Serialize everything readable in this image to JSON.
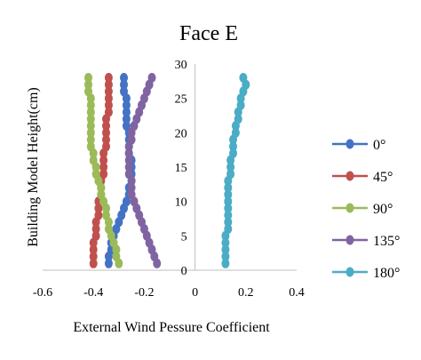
{
  "chart_data": {
    "type": "scatter",
    "title": "Face E",
    "xlabel": "External Wind Pessure Coefficient",
    "ylabel": "Building Model Height(cm)",
    "xlim": [
      -0.6,
      0.4
    ],
    "ylim": [
      0,
      30
    ],
    "xticks": [
      "-0.6",
      "-0.4",
      "-0.2",
      "0",
      "0.2",
      "0.4"
    ],
    "yticks": [
      "0",
      "5",
      "10",
      "15",
      "20",
      "25",
      "30"
    ],
    "grid": false,
    "legend_position": "right",
    "series": [
      {
        "name": "0°",
        "color": "#4472C4",
        "points": [
          [
            -0.34,
            1
          ],
          [
            -0.34,
            2
          ],
          [
            -0.33,
            3
          ],
          [
            -0.33,
            4
          ],
          [
            -0.32,
            5
          ],
          [
            -0.31,
            6
          ],
          [
            -0.3,
            7
          ],
          [
            -0.29,
            8
          ],
          [
            -0.28,
            9
          ],
          [
            -0.27,
            10
          ],
          [
            -0.26,
            11
          ],
          [
            -0.26,
            12
          ],
          [
            -0.25,
            13
          ],
          [
            -0.25,
            14
          ],
          [
            -0.25,
            15
          ],
          [
            -0.25,
            16
          ],
          [
            -0.26,
            17
          ],
          [
            -0.26,
            18
          ],
          [
            -0.26,
            19
          ],
          [
            -0.26,
            20
          ],
          [
            -0.27,
            21
          ],
          [
            -0.27,
            22
          ],
          [
            -0.27,
            23
          ],
          [
            -0.27,
            24
          ],
          [
            -0.27,
            25
          ],
          [
            -0.28,
            26
          ],
          [
            -0.28,
            27
          ],
          [
            -0.28,
            28
          ]
        ]
      },
      {
        "name": "45°",
        "color": "#C0504D",
        "points": [
          [
            -0.4,
            1
          ],
          [
            -0.4,
            2
          ],
          [
            -0.4,
            3
          ],
          [
            -0.4,
            4
          ],
          [
            -0.39,
            5
          ],
          [
            -0.39,
            6
          ],
          [
            -0.39,
            7
          ],
          [
            -0.38,
            8
          ],
          [
            -0.38,
            9
          ],
          [
            -0.38,
            10
          ],
          [
            -0.37,
            11
          ],
          [
            -0.37,
            12
          ],
          [
            -0.37,
            13
          ],
          [
            -0.36,
            14
          ],
          [
            -0.36,
            15
          ],
          [
            -0.36,
            16
          ],
          [
            -0.36,
            17
          ],
          [
            -0.35,
            18
          ],
          [
            -0.35,
            19
          ],
          [
            -0.35,
            20
          ],
          [
            -0.35,
            21
          ],
          [
            -0.35,
            22
          ],
          [
            -0.34,
            23
          ],
          [
            -0.34,
            24
          ],
          [
            -0.34,
            25
          ],
          [
            -0.34,
            26
          ],
          [
            -0.34,
            27
          ],
          [
            -0.34,
            28
          ]
        ]
      },
      {
        "name": "90°",
        "color": "#9BBB59",
        "points": [
          [
            -0.3,
            1
          ],
          [
            -0.31,
            2
          ],
          [
            -0.31,
            3
          ],
          [
            -0.32,
            4
          ],
          [
            -0.33,
            5
          ],
          [
            -0.34,
            6
          ],
          [
            -0.34,
            7
          ],
          [
            -0.35,
            8
          ],
          [
            -0.35,
            9
          ],
          [
            -0.36,
            10
          ],
          [
            -0.37,
            11
          ],
          [
            -0.37,
            12
          ],
          [
            -0.38,
            13
          ],
          [
            -0.39,
            14
          ],
          [
            -0.39,
            15
          ],
          [
            -0.4,
            16
          ],
          [
            -0.4,
            17
          ],
          [
            -0.41,
            18
          ],
          [
            -0.41,
            19
          ],
          [
            -0.41,
            20
          ],
          [
            -0.41,
            21
          ],
          [
            -0.41,
            22
          ],
          [
            -0.41,
            23
          ],
          [
            -0.41,
            24
          ],
          [
            -0.41,
            25
          ],
          [
            -0.42,
            26
          ],
          [
            -0.42,
            27
          ],
          [
            -0.42,
            28
          ]
        ]
      },
      {
        "name": "135°",
        "color": "#8064A2",
        "points": [
          [
            -0.15,
            1
          ],
          [
            -0.16,
            2
          ],
          [
            -0.17,
            3
          ],
          [
            -0.18,
            4
          ],
          [
            -0.19,
            5
          ],
          [
            -0.2,
            6
          ],
          [
            -0.21,
            7
          ],
          [
            -0.22,
            8
          ],
          [
            -0.23,
            9
          ],
          [
            -0.24,
            10
          ],
          [
            -0.25,
            11
          ],
          [
            -0.25,
            12
          ],
          [
            -0.25,
            13
          ],
          [
            -0.26,
            14
          ],
          [
            -0.26,
            15
          ],
          [
            -0.26,
            16
          ],
          [
            -0.26,
            17
          ],
          [
            -0.26,
            18
          ],
          [
            -0.25,
            19
          ],
          [
            -0.25,
            20
          ],
          [
            -0.24,
            21
          ],
          [
            -0.23,
            22
          ],
          [
            -0.22,
            23
          ],
          [
            -0.21,
            24
          ],
          [
            -0.2,
            25
          ],
          [
            -0.19,
            26
          ],
          [
            -0.18,
            27
          ],
          [
            -0.17,
            28
          ]
        ]
      },
      {
        "name": "180°",
        "color": "#4BACC6",
        "points": [
          [
            0.12,
            1
          ],
          [
            0.12,
            2
          ],
          [
            0.12,
            3
          ],
          [
            0.12,
            4
          ],
          [
            0.12,
            5
          ],
          [
            0.13,
            6
          ],
          [
            0.13,
            7
          ],
          [
            0.13,
            8
          ],
          [
            0.13,
            9
          ],
          [
            0.13,
            10
          ],
          [
            0.13,
            11
          ],
          [
            0.13,
            12
          ],
          [
            0.13,
            13
          ],
          [
            0.14,
            14
          ],
          [
            0.14,
            15
          ],
          [
            0.14,
            16
          ],
          [
            0.15,
            17
          ],
          [
            0.15,
            18
          ],
          [
            0.15,
            19
          ],
          [
            0.16,
            20
          ],
          [
            0.16,
            21
          ],
          [
            0.17,
            22
          ],
          [
            0.17,
            23
          ],
          [
            0.18,
            24
          ],
          [
            0.18,
            25
          ],
          [
            0.19,
            26
          ],
          [
            0.2,
            27
          ],
          [
            0.19,
            28
          ]
        ]
      }
    ]
  }
}
